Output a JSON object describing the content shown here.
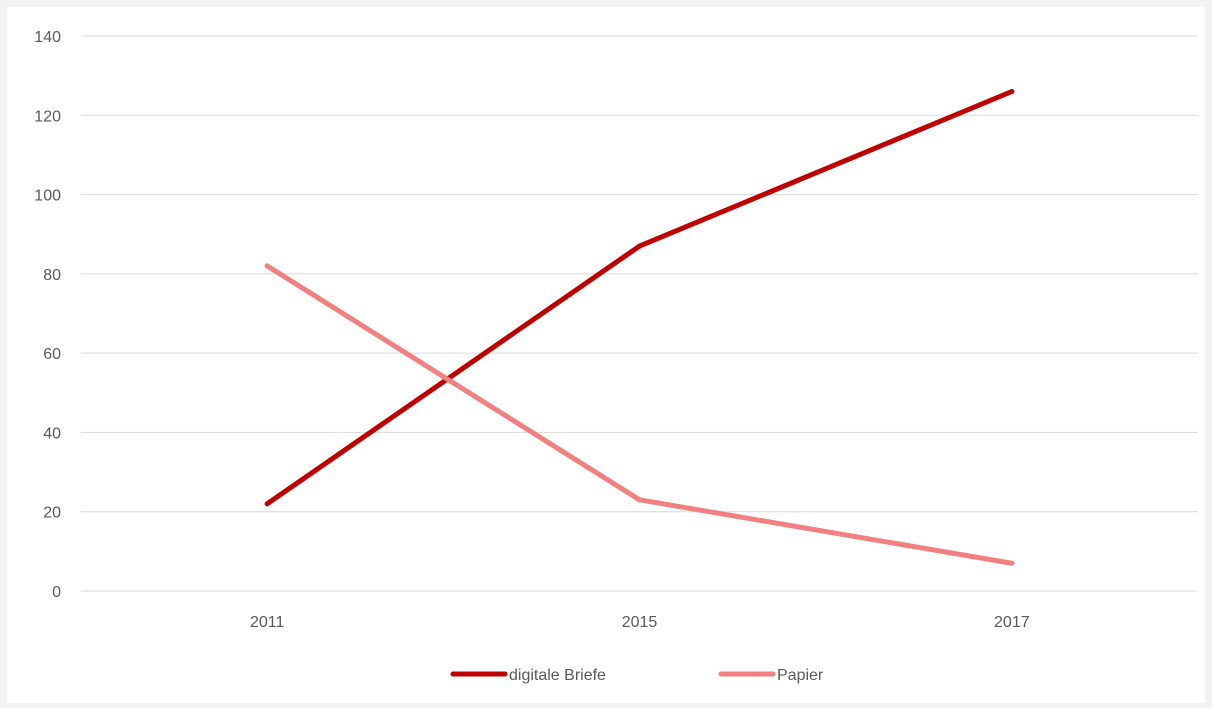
{
  "chart_data": {
    "type": "line",
    "title": "",
    "xlabel": "",
    "ylabel": "",
    "categories": [
      "2011",
      "2015",
      "2017"
    ],
    "ylim": [
      0,
      140
    ],
    "yticks": [
      0,
      20,
      40,
      60,
      80,
      100,
      120,
      140
    ],
    "grid": true,
    "legend_position": "bottom",
    "series": [
      {
        "name": "digitale Briefe",
        "values": [
          22,
          87,
          126
        ],
        "color": "#c00000"
      },
      {
        "name": "Papier",
        "values": [
          82,
          23,
          7
        ],
        "color": "#f28080"
      }
    ]
  }
}
